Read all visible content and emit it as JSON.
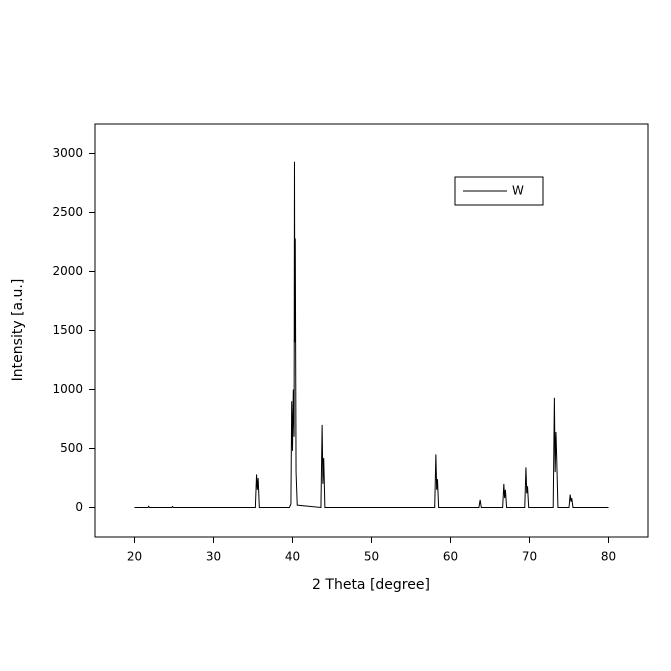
{
  "chart_data": {
    "type": "line",
    "x_label": "2 Theta [degree]",
    "y_label": "Intensity [a.u.]",
    "x": [
      20,
      21.7,
      21.8,
      21.9,
      24.7,
      24.8,
      24.9,
      35.3,
      35.45,
      35.55,
      35.65,
      35.8,
      39.6,
      39.8,
      39.9,
      40.0,
      40.1,
      40.2,
      40.25,
      40.3,
      40.35,
      40.45,
      40.6,
      43.6,
      43.75,
      43.85,
      43.95,
      44.1,
      58.0,
      58.15,
      58.25,
      58.35,
      58.5,
      63.6,
      63.75,
      63.9,
      66.6,
      66.75,
      66.85,
      66.95,
      67.1,
      69.4,
      69.55,
      69.65,
      69.75,
      69.9,
      73.0,
      73.15,
      73.25,
      73.35,
      73.45,
      73.6,
      75.0,
      75.15,
      75.25,
      75.35,
      75.5,
      80
    ],
    "series": [
      {
        "name": "W",
        "color": "#000000",
        "values": [
          0,
          0,
          10,
          0,
          0,
          8,
          0,
          0,
          280,
          150,
          250,
          0,
          0,
          30,
          900,
          480,
          1000,
          600,
          2930,
          1400,
          2280,
          300,
          20,
          0,
          700,
          200,
          420,
          0,
          0,
          450,
          150,
          240,
          0,
          0,
          65,
          0,
          0,
          200,
          80,
          150,
          0,
          0,
          340,
          120,
          180,
          0,
          0,
          930,
          300,
          640,
          400,
          0,
          0,
          110,
          50,
          80,
          0,
          0
        ]
      }
    ],
    "xlim": [
      15,
      85
    ],
    "xticks": [
      20,
      30,
      40,
      50,
      60,
      70,
      80
    ],
    "ylim": [
      -250,
      3250
    ],
    "yticks": [
      0,
      500,
      1000,
      1500,
      2000,
      2500,
      3000
    ],
    "legend": "top-right"
  }
}
